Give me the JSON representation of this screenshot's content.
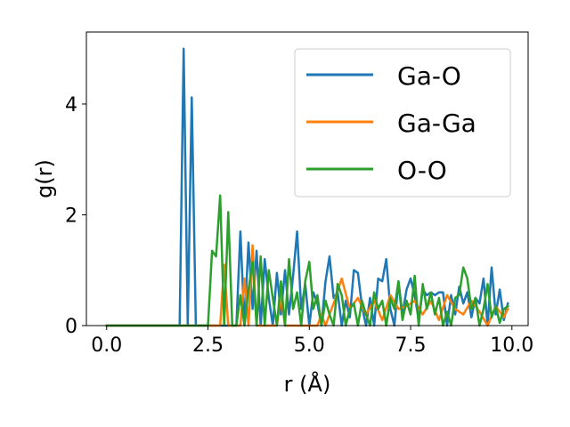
{
  "chart_data": {
    "type": "line",
    "title": "",
    "xlabel": "r (Å)",
    "ylabel": "g(r)",
    "xlim": [
      -0.5,
      10.4
    ],
    "ylim": [
      0,
      5.3
    ],
    "xticks": [
      0.0,
      2.5,
      5.0,
      7.5,
      10.0
    ],
    "xtick_labels": [
      "0.0",
      "2.5",
      "5.0",
      "7.5",
      "10.0"
    ],
    "yticks": [
      0,
      2,
      4
    ],
    "ytick_labels": [
      "0",
      "2",
      "4"
    ],
    "grid": false,
    "legend_position": "upper-right",
    "series": [
      {
        "name": "Ga-O",
        "color": "#1f77b4",
        "points": [
          [
            0.0,
            0.0
          ],
          [
            1.8,
            0.0
          ],
          [
            1.9,
            5.0
          ],
          [
            2.0,
            0.0
          ],
          [
            2.1,
            4.12
          ],
          [
            2.2,
            0.0
          ],
          [
            3.2,
            0.0
          ],
          [
            3.3,
            1.7
          ],
          [
            3.4,
            0.0
          ],
          [
            3.5,
            1.5
          ],
          [
            3.6,
            0.3
          ],
          [
            3.7,
            1.35
          ],
          [
            3.8,
            0.0
          ],
          [
            3.9,
            1.2
          ],
          [
            4.0,
            0.5
          ],
          [
            4.1,
            0.0
          ],
          [
            4.2,
            0.95
          ],
          [
            4.3,
            0.2
          ],
          [
            4.4,
            1.0
          ],
          [
            4.5,
            0.2
          ],
          [
            4.6,
            0.9
          ],
          [
            4.7,
            1.7
          ],
          [
            4.8,
            0.3
          ],
          [
            4.9,
            0.75
          ],
          [
            5.0,
            0.0
          ],
          [
            5.1,
            0.6
          ],
          [
            5.2,
            0.4
          ],
          [
            5.3,
            0.0
          ],
          [
            5.4,
            0.8
          ],
          [
            5.5,
            1.25
          ],
          [
            5.6,
            0.5
          ],
          [
            5.7,
            0.6
          ],
          [
            5.8,
            0.0
          ],
          [
            5.9,
            0.45
          ],
          [
            6.0,
            0.15
          ],
          [
            6.1,
            1.0
          ],
          [
            6.2,
            0.95
          ],
          [
            6.3,
            0.35
          ],
          [
            6.4,
            0.0
          ],
          [
            6.5,
            0.5
          ],
          [
            6.6,
            0.0
          ],
          [
            6.7,
            0.85
          ],
          [
            6.8,
            0.8
          ],
          [
            6.9,
            1.2
          ],
          [
            7.0,
            0.3
          ],
          [
            7.1,
            0.0
          ],
          [
            7.2,
            0.8
          ],
          [
            7.3,
            0.2
          ],
          [
            7.4,
            0.65
          ],
          [
            7.5,
            0.85
          ],
          [
            7.6,
            0.55
          ],
          [
            7.7,
            0.1
          ],
          [
            7.8,
            0.65
          ],
          [
            7.9,
            0.55
          ],
          [
            8.0,
            0.6
          ],
          [
            8.1,
            0.55
          ],
          [
            8.2,
            0.6
          ],
          [
            8.3,
            0.6
          ],
          [
            8.4,
            0.0
          ],
          [
            8.5,
            0.55
          ],
          [
            8.6,
            0.2
          ],
          [
            8.7,
            0.7
          ],
          [
            8.8,
            0.4
          ],
          [
            8.9,
            0.6
          ],
          [
            9.0,
            0.15
          ],
          [
            9.1,
            0.5
          ],
          [
            9.2,
            0.4
          ],
          [
            9.3,
            0.85
          ],
          [
            9.4,
            0.0
          ],
          [
            9.5,
            1.05
          ],
          [
            9.6,
            0.2
          ],
          [
            9.7,
            0.65
          ],
          [
            9.8,
            0.1
          ],
          [
            9.9,
            0.4
          ]
        ]
      },
      {
        "name": "Ga-Ga",
        "color": "#ff7f0e",
        "points": [
          [
            0.0,
            0.0
          ],
          [
            2.8,
            0.0
          ],
          [
            2.9,
            1.1
          ],
          [
            3.0,
            0.0
          ],
          [
            3.3,
            0.0
          ],
          [
            3.4,
            0.85
          ],
          [
            3.5,
            0.0
          ],
          [
            3.6,
            1.45
          ],
          [
            3.7,
            0.0
          ],
          [
            4.2,
            0.0
          ],
          [
            4.3,
            0.55
          ],
          [
            4.4,
            0.0
          ],
          [
            5.2,
            0.0
          ],
          [
            5.3,
            0.2
          ],
          [
            5.4,
            0.0
          ],
          [
            5.6,
            0.4
          ],
          [
            5.8,
            0.85
          ],
          [
            6.0,
            0.3
          ],
          [
            6.2,
            0.5
          ],
          [
            6.4,
            0.2
          ],
          [
            6.6,
            0.45
          ],
          [
            6.8,
            0.1
          ],
          [
            7.0,
            0.55
          ],
          [
            7.2,
            0.3
          ],
          [
            7.4,
            0.35
          ],
          [
            7.6,
            0.45
          ],
          [
            7.8,
            0.2
          ],
          [
            8.0,
            0.45
          ],
          [
            8.2,
            0.1
          ],
          [
            8.4,
            0.55
          ],
          [
            8.6,
            0.3
          ],
          [
            8.8,
            0.2
          ],
          [
            9.0,
            0.45
          ],
          [
            9.2,
            0.25
          ],
          [
            9.4,
            0.0
          ],
          [
            9.6,
            0.35
          ],
          [
            9.8,
            0.15
          ],
          [
            9.9,
            0.3
          ]
        ]
      },
      {
        "name": "O-O",
        "color": "#2ca02c",
        "points": [
          [
            0.0,
            0.0
          ],
          [
            2.5,
            0.0
          ],
          [
            2.6,
            1.35
          ],
          [
            2.7,
            1.25
          ],
          [
            2.8,
            2.35
          ],
          [
            2.9,
            0.0
          ],
          [
            3.0,
            2.05
          ],
          [
            3.1,
            0.0
          ],
          [
            3.2,
            0.0
          ],
          [
            3.3,
            0.55
          ],
          [
            3.4,
            0.0
          ],
          [
            3.5,
            0.65
          ],
          [
            3.6,
            1.15
          ],
          [
            3.7,
            0.0
          ],
          [
            3.8,
            1.25
          ],
          [
            3.9,
            0.0
          ],
          [
            4.0,
            1.0
          ],
          [
            4.1,
            0.5
          ],
          [
            4.2,
            0.0
          ],
          [
            4.3,
            0.8
          ],
          [
            4.4,
            0.0
          ],
          [
            4.5,
            1.2
          ],
          [
            4.6,
            0.3
          ],
          [
            4.7,
            0.6
          ],
          [
            4.8,
            0.0
          ],
          [
            4.9,
            0.8
          ],
          [
            5.0,
            1.15
          ],
          [
            5.1,
            0.3
          ],
          [
            5.2,
            0.55
          ],
          [
            5.3,
            0.0
          ],
          [
            5.4,
            0.45
          ],
          [
            5.5,
            0.2
          ],
          [
            5.6,
            0.0
          ],
          [
            5.7,
            0.75
          ],
          [
            5.8,
            0.55
          ],
          [
            5.9,
            0.0
          ],
          [
            6.0,
            0.3
          ],
          [
            6.1,
            0.4
          ],
          [
            6.2,
            0.0
          ],
          [
            6.3,
            0.45
          ],
          [
            6.4,
            0.2
          ],
          [
            6.5,
            0.0
          ],
          [
            6.6,
            0.6
          ],
          [
            6.7,
            0.3
          ],
          [
            6.8,
            0.45
          ],
          [
            6.9,
            0.0
          ],
          [
            7.0,
            0.5
          ],
          [
            7.1,
            0.3
          ],
          [
            7.2,
            0.8
          ],
          [
            7.3,
            0.1
          ],
          [
            7.4,
            0.45
          ],
          [
            7.5,
            0.2
          ],
          [
            7.6,
            0.9
          ],
          [
            7.7,
            0.0
          ],
          [
            7.8,
            0.75
          ],
          [
            7.9,
            0.3
          ],
          [
            8.0,
            0.6
          ],
          [
            8.1,
            0.2
          ],
          [
            8.2,
            0.5
          ],
          [
            8.3,
            0.0
          ],
          [
            8.4,
            0.25
          ],
          [
            8.5,
            0.0
          ],
          [
            8.6,
            0.5
          ],
          [
            8.7,
            0.55
          ],
          [
            8.8,
            1.05
          ],
          [
            8.9,
            0.85
          ],
          [
            9.0,
            0.3
          ],
          [
            9.1,
            0.5
          ],
          [
            9.2,
            0.0
          ],
          [
            9.3,
            0.3
          ],
          [
            9.4,
            0.75
          ],
          [
            9.5,
            0.15
          ],
          [
            9.6,
            0.35
          ],
          [
            9.7,
            0.05
          ],
          [
            9.8,
            0.3
          ],
          [
            9.9,
            0.35
          ]
        ]
      }
    ]
  }
}
